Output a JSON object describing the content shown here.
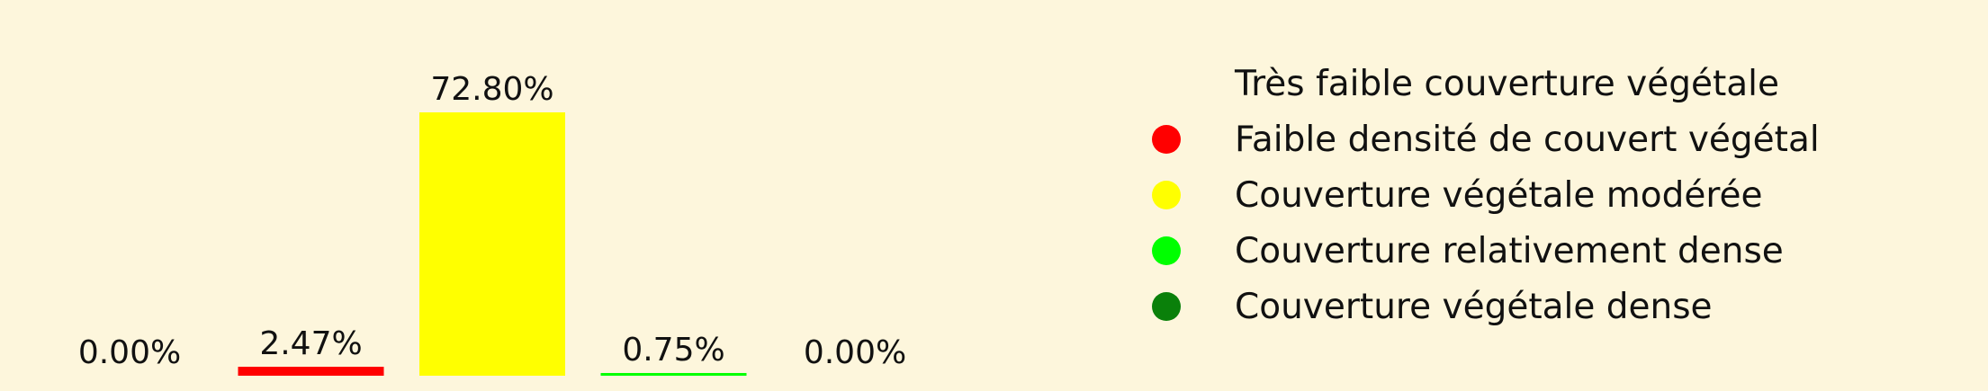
{
  "chart_data": {
    "type": "bar",
    "categories": [
      "Très faible couverture végétale",
      "Faible densité de couvert végétal",
      "Couverture végétale modérée",
      "Couverture relativement dense",
      "Couverture végétale dense"
    ],
    "values": [
      0.0,
      2.47,
      72.8,
      0.75,
      0.0
    ],
    "value_labels": [
      "0.00%",
      "2.47%",
      "72.80%",
      "0.75%",
      "0.00%"
    ],
    "colors": [
      "#fdf6dc",
      "#ff0000",
      "#ffff00",
      "#00ff00",
      "#0a800a"
    ],
    "ylim": [
      0,
      72.8
    ],
    "grid": false,
    "legend_position": "right"
  },
  "legend": {
    "items": [
      {
        "label": "Très faible couverture végétale",
        "color": "#fdf6dc"
      },
      {
        "label": "Faible densité de couvert végétal",
        "color": "#ff0000"
      },
      {
        "label": "Couverture végétale modérée",
        "color": "#ffff00"
      },
      {
        "label": "Couverture relativement dense",
        "color": "#00ff00"
      },
      {
        "label": "Couverture végétale dense",
        "color": "#0a800a"
      }
    ]
  },
  "background_color": "#fdf6dc"
}
